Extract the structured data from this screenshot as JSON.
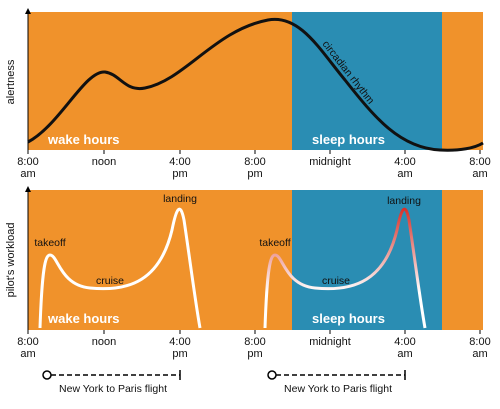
{
  "top": {
    "y_axis_label": "alertness",
    "curve_label": "circadian rhythm",
    "wake_label": "wake hours",
    "sleep_label": "sleep hours",
    "ticks": [
      {
        "line1": "8:00",
        "line2": "am"
      },
      {
        "line1": "noon"
      },
      {
        "line1": "4:00",
        "line2": "pm"
      },
      {
        "line1": "8:00",
        "line2": "pm"
      },
      {
        "line1": "midnight"
      },
      {
        "line1": "4:00",
        "line2": "am"
      },
      {
        "line1": "8:00",
        "line2": "am"
      }
    ]
  },
  "bottom": {
    "y_axis_label": "pilot's workload",
    "wake_label": "wake hours",
    "sleep_label": "sleep hours",
    "flight1": {
      "takeoff": "takeoff",
      "cruise": "cruise",
      "landing": "landing"
    },
    "flight2": {
      "takeoff": "takeoff",
      "cruise": "cruise",
      "landing": "landing"
    },
    "ticks": [
      {
        "line1": "8:00",
        "line2": "am"
      },
      {
        "line1": "noon"
      },
      {
        "line1": "4:00",
        "line2": "pm"
      },
      {
        "line1": "8:00",
        "line2": "pm"
      },
      {
        "line1": "midnight"
      },
      {
        "line1": "4:00",
        "line2": "am"
      },
      {
        "line1": "8:00",
        "line2": "am"
      }
    ]
  },
  "flights": [
    "New York to Paris flight",
    "New York to Paris flight"
  ]
}
